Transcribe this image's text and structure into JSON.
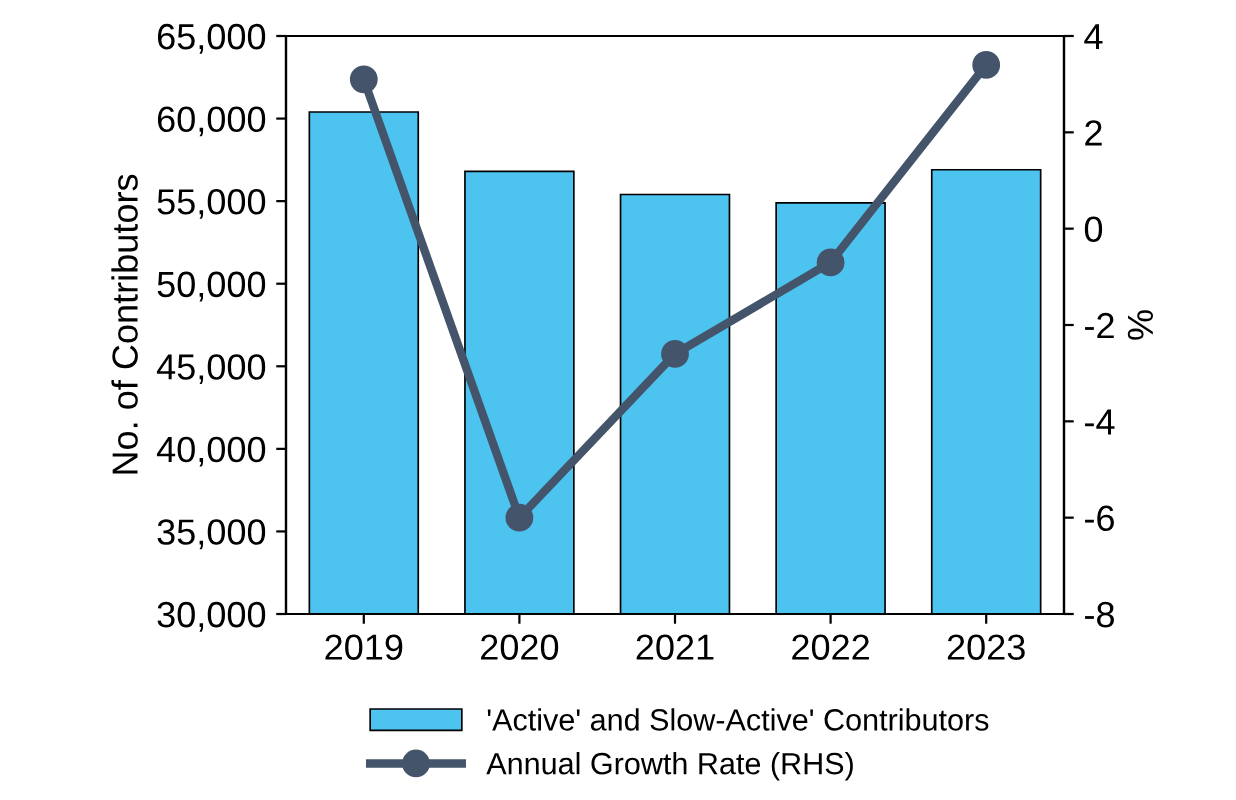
{
  "chart_data": {
    "type": "bar",
    "categories": [
      "2019",
      "2020",
      "2021",
      "2022",
      "2023"
    ],
    "ylabel": "No. of Contributors",
    "y2label": "%",
    "series": [
      {
        "name": "'Active' and Slow-Active' Contributors",
        "color": "#4dc3f0",
        "values": [
          60400,
          56800,
          55400,
          54900,
          56900
        ]
      },
      {
        "name": "Annual Growth Rate (RHS)",
        "type": "line",
        "axis": "y2",
        "color": "#44546a",
        "marker": "circle",
        "values": [
          3.1,
          -6.0,
          -2.6,
          -0.7,
          3.4
        ]
      }
    ],
    "ylim": [
      30000,
      65000
    ],
    "yticks": [
      {
        "value": 30000,
        "label": "30,000"
      },
      {
        "value": 35000,
        "label": "35,000"
      },
      {
        "value": 40000,
        "label": "40,000"
      },
      {
        "value": 45000,
        "label": "45,000"
      },
      {
        "value": 50000,
        "label": "50,000"
      },
      {
        "value": 55000,
        "label": "55,000"
      },
      {
        "value": 60000,
        "label": "60,000"
      },
      {
        "value": 65000,
        "label": "65,000"
      }
    ],
    "y2lim": [
      -8,
      4
    ],
    "y2ticks": [
      -8,
      -6,
      -4,
      -2,
      0,
      2,
      4
    ],
    "grid": false,
    "legend": "bottom"
  }
}
